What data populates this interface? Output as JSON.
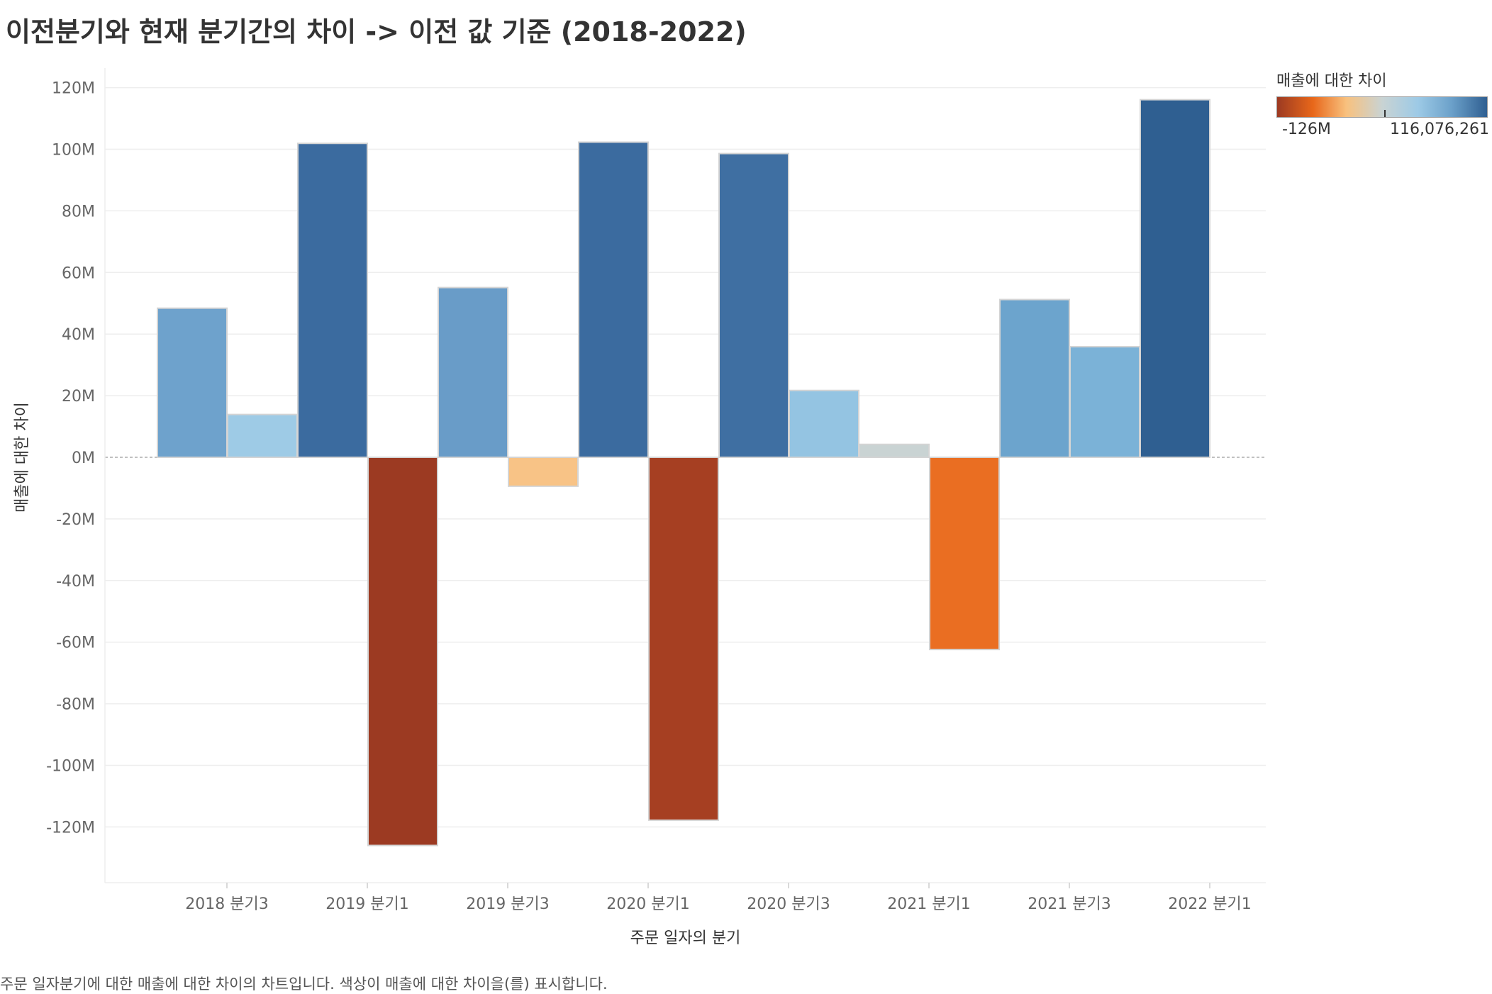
{
  "title": "이전분기와 현재 분기간의 차이 -> 이전 값 기준 (2018-2022)",
  "caption": "주문 일자분기에 대한 매출에 대한 차이의 차트입니다. 색상이 매출에 대한 차이을(를) 표시합니다.",
  "legend": {
    "title": "매출에 대한 차이",
    "min_label": "-126M",
    "max_label": "116,076,261",
    "colors": [
      "#9c3a22",
      "#e8671a",
      "#f8c17e",
      "#c9d3d3",
      "#9dcae6",
      "#6ca1ca",
      "#2f5f91"
    ]
  },
  "chart_data": {
    "type": "bar",
    "xlabel": "주문 일자의 분기",
    "ylabel": "매출에 대한 차이",
    "ylim": [
      -138,
      124
    ],
    "y_ticks": [
      120,
      100,
      80,
      60,
      40,
      20,
      0,
      -20,
      -40,
      -60,
      -80,
      -100,
      -120
    ],
    "y_tick_labels": [
      "120M",
      "100M",
      "80M",
      "60M",
      "40M",
      "20M",
      "0M",
      "-20M",
      "-40M",
      "-60M",
      "-80M",
      "-100M",
      "-120M"
    ],
    "x_tick_labels": [
      "2018 분기3",
      "2019 분기1",
      "2019 분기3",
      "2020 분기1",
      "2020 분기3",
      "2021 분기1",
      "2021 분기3",
      "2022 분기1"
    ],
    "unit": "M",
    "values": [
      48.4,
      13.9,
      101.9,
      -126,
      55.1,
      -9.4,
      102.3,
      -117.8,
      98.6,
      21.7,
      4.2,
      -62.4,
      51.2,
      35.9,
      116.08
    ],
    "colors": [
      "#6ea2cc",
      "#9ecbe6",
      "#3b6b9f",
      "#9c3a22",
      "#699cc8",
      "#f8c386",
      "#3b6b9f",
      "#a63f22",
      "#3f6fa2",
      "#94c4e2",
      "#c9d3d3",
      "#ea6e22",
      "#6ca4cd",
      "#7bb2d7",
      "#2f5f91"
    ],
    "grid": true
  }
}
